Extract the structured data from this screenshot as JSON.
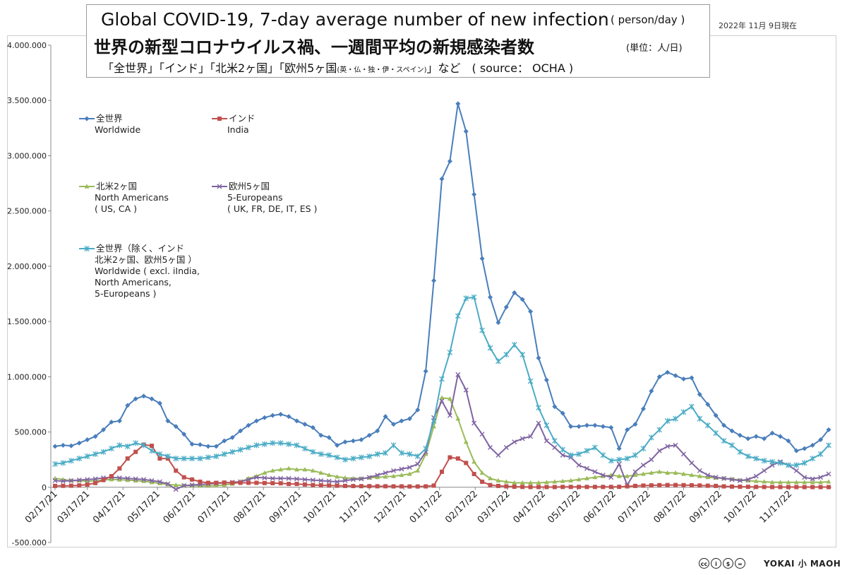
{
  "title": {
    "line1": "Global COVID-19, 7-day average number of new infection",
    "line1_unit": "( person/day )",
    "line2": "世界の新型コロナウイルス禍、一週間平均の新規感染者数",
    "line2_unit": "(単位：人/日)",
    "line3_a": "「全世界」「インド」「北米2ヶ国」「欧州5ヶ国",
    "line3_small": "(英・仏・独・伊・スペイン)",
    "line3_b": "」など　( source： OCHA )"
  },
  "date_label": "2022年 11月 9日現在",
  "credit": {
    "license_icons": [
      "cc-icon",
      "by-icon",
      "nc-icon",
      "nd-icon"
    ],
    "license_glyphs": [
      "cc",
      "i",
      "$",
      "="
    ],
    "author": "YOKAI 小 MAOH"
  },
  "chart_data": {
    "type": "line",
    "ylim": [
      -500000,
      4000000
    ],
    "y_ticks": [
      -500000,
      0,
      500000,
      1000000,
      1500000,
      2000000,
      2500000,
      3000000,
      3500000,
      4000000
    ],
    "y_tick_labels": [
      "-500.000",
      "0",
      "500.000",
      "1.000.000",
      "1.500.000",
      "2.000.000",
      "2.500.000",
      "3.000.000",
      "3.500.000",
      "4.000.000"
    ],
    "x_start": "2021-02-17",
    "x_step_days": 7,
    "x_tick_labels": [
      "02/17/21",
      "03/17/21",
      "04/17/21",
      "05/17/21",
      "06/17/21",
      "07/17/21",
      "08/17/21",
      "09/17/21",
      "10/17/21",
      "11/17/21",
      "12/17/21",
      "01/17/22",
      "02/17/22",
      "03/17/22",
      "04/17/22",
      "05/17/22",
      "06/17/22",
      "07/17/22",
      "08/17/22",
      "09/17/22",
      "10/17/22",
      "11/17/22"
    ],
    "grid": false,
    "series": [
      {
        "name": "全世界",
        "name2": "Worldwide",
        "name3": "",
        "name4": "",
        "name5": "",
        "color": "#4a7ebb",
        "marker": "diamond",
        "values": [
          370000,
          380000,
          375000,
          400000,
          430000,
          460000,
          520000,
          590000,
          600000,
          740000,
          800000,
          825000,
          800000,
          760000,
          600000,
          550000,
          480000,
          390000,
          385000,
          370000,
          370000,
          420000,
          450000,
          510000,
          560000,
          600000,
          630000,
          650000,
          660000,
          640000,
          600000,
          570000,
          540000,
          470000,
          450000,
          380000,
          410000,
          420000,
          430000,
          470000,
          510000,
          640000,
          570000,
          600000,
          620000,
          700000,
          1050000,
          1870000,
          2790000,
          2950000,
          3470000,
          3220000,
          2650000,
          2070000,
          1720000,
          1490000,
          1630000,
          1760000,
          1700000,
          1590000,
          1170000,
          970000,
          730000,
          670000,
          550000,
          550000,
          560000,
          560000,
          550000,
          540000,
          350000,
          520000,
          570000,
          710000,
          870000,
          1000000,
          1040000,
          1010000,
          980000,
          990000,
          840000,
          750000,
          650000,
          560000,
          510000,
          470000,
          440000,
          460000,
          440000,
          490000,
          460000,
          420000,
          330000,
          350000,
          380000,
          430000,
          520000
        ]
      },
      {
        "name": "インド",
        "name2": "India",
        "name3": "",
        "name4": "",
        "name5": "",
        "color": "#c0504d",
        "marker": "square",
        "values": [
          12000,
          13000,
          14000,
          17000,
          24000,
          38000,
          65000,
          100000,
          170000,
          260000,
          320000,
          385000,
          375000,
          260000,
          260000,
          150000,
          90000,
          70000,
          50000,
          40000,
          40000,
          42000,
          41000,
          40000,
          40000,
          40000,
          38000,
          37000,
          36000,
          30000,
          30000,
          25000,
          20000,
          18000,
          16000,
          14000,
          12000,
          11000,
          10000,
          10000,
          9000,
          9000,
          8000,
          8000,
          7000,
          7000,
          8000,
          15000,
          140000,
          270000,
          260000,
          220000,
          120000,
          50000,
          20000,
          12000,
          8000,
          5000,
          3000,
          2000,
          2000,
          2000,
          2000,
          3000,
          3000,
          3000,
          3000,
          3000,
          3000,
          3000,
          4000,
          8000,
          12000,
          15000,
          17000,
          19000,
          20000,
          20000,
          19000,
          18000,
          16000,
          14000,
          12000,
          8000,
          6000,
          5000,
          4000,
          3000,
          2500,
          2000,
          2000,
          2000,
          2000,
          1500,
          1500,
          1500,
          1500
        ]
      },
      {
        "name": "北米2ヶ国",
        "name2": "North Americans",
        "name3": "( US, CA )",
        "name4": "",
        "name5": "",
        "color": "#9bbb59",
        "marker": "triangle",
        "values": [
          80000,
          70000,
          60000,
          60000,
          55000,
          60000,
          65000,
          70000,
          68000,
          65000,
          60000,
          55000,
          45000,
          35000,
          25000,
          20000,
          15000,
          15000,
          13000,
          12000,
          15000,
          20000,
          30000,
          50000,
          80000,
          100000,
          130000,
          150000,
          160000,
          170000,
          160000,
          160000,
          150000,
          130000,
          110000,
          95000,
          85000,
          80000,
          80000,
          85000,
          90000,
          95000,
          100000,
          110000,
          120000,
          150000,
          300000,
          550000,
          810000,
          800000,
          620000,
          410000,
          230000,
          130000,
          80000,
          60000,
          50000,
          40000,
          40000,
          40000,
          40000,
          45000,
          50000,
          55000,
          60000,
          70000,
          80000,
          90000,
          100000,
          110000,
          100000,
          100000,
          110000,
          120000,
          130000,
          140000,
          130000,
          130000,
          120000,
          110000,
          100000,
          90000,
          85000,
          80000,
          75000,
          65000,
          60000,
          55000,
          50000,
          45000,
          45000,
          45000,
          45000,
          45000,
          45000,
          45000,
          50000
        ]
      },
      {
        "name": "欧州5ヶ国",
        "name2": "5-Europeans",
        "name3": "( UK, FR, DE, IT, ES )",
        "name4": "",
        "name5": "",
        "color": "#8064a2",
        "marker": "x",
        "values": [
          60000,
          55000,
          60000,
          65000,
          70000,
          75000,
          85000,
          90000,
          85000,
          80000,
          75000,
          70000,
          60000,
          50000,
          30000,
          -20000,
          15000,
          20000,
          25000,
          30000,
          35000,
          40000,
          45000,
          50000,
          70000,
          90000,
          85000,
          80000,
          80000,
          80000,
          75000,
          70000,
          65000,
          60000,
          55000,
          50000,
          60000,
          70000,
          75000,
          90000,
          110000,
          130000,
          150000,
          165000,
          180000,
          210000,
          320000,
          630000,
          780000,
          650000,
          1020000,
          880000,
          580000,
          480000,
          360000,
          290000,
          360000,
          410000,
          440000,
          460000,
          580000,
          420000,
          360000,
          290000,
          270000,
          200000,
          170000,
          140000,
          110000,
          90000,
          210000,
          20000,
          140000,
          200000,
          250000,
          330000,
          370000,
          380000,
          300000,
          220000,
          150000,
          110000,
          90000,
          80000,
          70000,
          60000,
          70000,
          100000,
          150000,
          200000,
          230000,
          200000,
          150000,
          90000,
          75000,
          90000,
          120000
        ]
      },
      {
        "name": "全世界（除く、インド",
        "name2": "北米2ヶ国、欧州5ヶ国 ）",
        "name3": "Worldwide ( excl. iIndia,",
        "name4": "North Americans,",
        "name5": "5-Europeans )",
        "color": "#4bacc6",
        "marker": "star",
        "values": [
          210000,
          220000,
          240000,
          260000,
          280000,
          300000,
          320000,
          350000,
          380000,
          370000,
          400000,
          380000,
          330000,
          300000,
          280000,
          260000,
          260000,
          260000,
          260000,
          270000,
          280000,
          300000,
          320000,
          340000,
          360000,
          380000,
          390000,
          400000,
          400000,
          390000,
          380000,
          350000,
          320000,
          300000,
          290000,
          270000,
          250000,
          260000,
          270000,
          280000,
          300000,
          310000,
          380000,
          310000,
          300000,
          280000,
          350000,
          600000,
          980000,
          1220000,
          1550000,
          1710000,
          1720000,
          1420000,
          1260000,
          1140000,
          1200000,
          1290000,
          1200000,
          960000,
          720000,
          560000,
          420000,
          340000,
          290000,
          300000,
          330000,
          360000,
          290000,
          240000,
          250000,
          260000,
          290000,
          350000,
          450000,
          520000,
          600000,
          620000,
          680000,
          730000,
          620000,
          560000,
          490000,
          420000,
          380000,
          320000,
          280000,
          260000,
          240000,
          230000,
          220000,
          200000,
          200000,
          220000,
          260000,
          300000,
          380000
        ]
      }
    ]
  }
}
